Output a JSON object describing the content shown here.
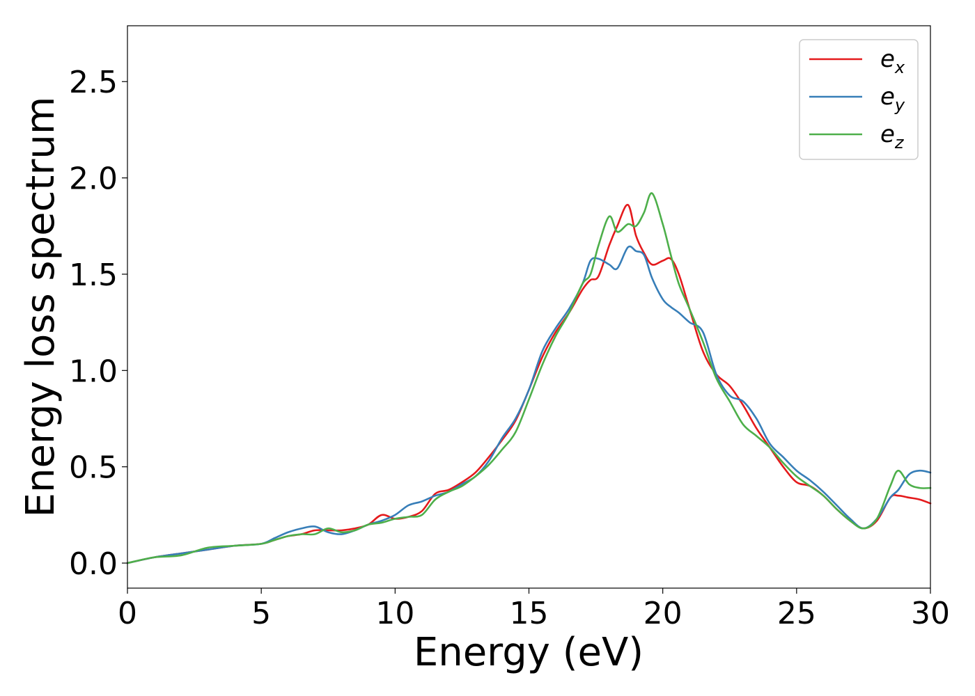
{
  "chart_data": {
    "type": "line",
    "title": "",
    "xlabel": "Energy (eV)",
    "ylabel": "Energy loss spectrum",
    "xlim": [
      0,
      30
    ],
    "ylim": [
      -0.13,
      2.79
    ],
    "xticks": [
      0,
      5,
      10,
      15,
      20,
      25,
      30
    ],
    "yticks": [
      0.0,
      0.5,
      1.0,
      1.5,
      2.0,
      2.5
    ],
    "xtick_labels": [
      "0",
      "5",
      "10",
      "15",
      "20",
      "25",
      "30"
    ],
    "ytick_labels": [
      "0.0",
      "0.5",
      "1.0",
      "1.5",
      "2.0",
      "2.5"
    ],
    "grid": false,
    "legend_position": "top-right",
    "series": [
      {
        "name": "e_x",
        "label_base": "e",
        "label_sub": "x",
        "color": "#e41a1c",
        "x": [
          0,
          1,
          2,
          3,
          4,
          5,
          5.5,
          6,
          6.5,
          7,
          7.5,
          8,
          8.5,
          9,
          9.5,
          10,
          10.5,
          11,
          11.5,
          12,
          12.5,
          13,
          13.5,
          14,
          14.5,
          15,
          15.5,
          16,
          16.5,
          17,
          17.3,
          17.6,
          18,
          18.3,
          18.7,
          19,
          19.3,
          19.6,
          20,
          20.3,
          20.6,
          21,
          21.5,
          22,
          22.5,
          23,
          23.5,
          24,
          24.5,
          25,
          25.5,
          26,
          26.5,
          27,
          27.5,
          28,
          28.5,
          28.8,
          29.2,
          29.6,
          30
        ],
        "y": [
          0.0,
          0.03,
          0.05,
          0.07,
          0.09,
          0.1,
          0.12,
          0.14,
          0.15,
          0.17,
          0.17,
          0.17,
          0.18,
          0.2,
          0.25,
          0.23,
          0.24,
          0.27,
          0.36,
          0.38,
          0.42,
          0.47,
          0.55,
          0.64,
          0.74,
          0.9,
          1.07,
          1.2,
          1.3,
          1.42,
          1.47,
          1.49,
          1.65,
          1.75,
          1.86,
          1.7,
          1.61,
          1.55,
          1.57,
          1.58,
          1.5,
          1.32,
          1.1,
          0.98,
          0.92,
          0.82,
          0.7,
          0.6,
          0.5,
          0.42,
          0.4,
          0.35,
          0.28,
          0.22,
          0.18,
          0.22,
          0.34,
          0.35,
          0.34,
          0.33,
          0.31
        ]
      },
      {
        "name": "e_y",
        "label_base": "e",
        "label_sub": "y",
        "color": "#377eb8",
        "x": [
          0,
          1,
          2,
          3,
          4,
          5,
          5.5,
          6,
          6.5,
          7,
          7.5,
          8,
          8.5,
          9,
          9.5,
          10,
          10.5,
          11,
          11.5,
          12,
          12.5,
          13,
          13.5,
          14,
          14.5,
          15,
          15.5,
          16,
          16.5,
          17,
          17.3,
          17.6,
          18,
          18.3,
          18.7,
          19,
          19.3,
          19.6,
          20,
          20.3,
          20.6,
          21,
          21.5,
          22,
          22.5,
          23,
          23.5,
          24,
          24.5,
          25,
          25.5,
          26,
          26.5,
          27,
          27.5,
          28,
          28.5,
          28.8,
          29.2,
          29.6,
          30
        ],
        "y": [
          0.0,
          0.03,
          0.05,
          0.07,
          0.09,
          0.1,
          0.13,
          0.16,
          0.18,
          0.19,
          0.16,
          0.15,
          0.17,
          0.2,
          0.22,
          0.25,
          0.3,
          0.32,
          0.35,
          0.37,
          0.41,
          0.45,
          0.53,
          0.65,
          0.75,
          0.9,
          1.1,
          1.22,
          1.32,
          1.45,
          1.57,
          1.58,
          1.55,
          1.53,
          1.64,
          1.62,
          1.6,
          1.48,
          1.37,
          1.33,
          1.3,
          1.25,
          1.2,
          0.98,
          0.87,
          0.84,
          0.75,
          0.62,
          0.55,
          0.48,
          0.43,
          0.37,
          0.3,
          0.23,
          0.18,
          0.23,
          0.34,
          0.38,
          0.46,
          0.48,
          0.47
        ]
      },
      {
        "name": "e_z",
        "label_base": "e",
        "label_sub": "z",
        "color": "#4daf4a",
        "x": [
          0,
          1,
          2,
          3,
          4,
          5,
          5.5,
          6,
          6.5,
          7,
          7.5,
          8,
          8.5,
          9,
          9.5,
          10,
          10.5,
          11,
          11.5,
          12,
          12.5,
          13,
          13.5,
          14,
          14.5,
          15,
          15.5,
          16,
          16.5,
          17,
          17.3,
          17.6,
          18,
          18.3,
          18.7,
          19,
          19.3,
          19.6,
          20,
          20.3,
          20.6,
          21,
          21.5,
          22,
          22.5,
          23,
          23.5,
          24,
          24.5,
          25,
          25.5,
          26,
          26.5,
          27,
          27.5,
          28,
          28.5,
          28.8,
          29.2,
          29.6,
          30
        ],
        "y": [
          0.0,
          0.03,
          0.04,
          0.08,
          0.09,
          0.1,
          0.12,
          0.14,
          0.15,
          0.15,
          0.18,
          0.16,
          0.17,
          0.2,
          0.21,
          0.23,
          0.24,
          0.25,
          0.33,
          0.37,
          0.4,
          0.45,
          0.51,
          0.59,
          0.68,
          0.85,
          1.03,
          1.18,
          1.3,
          1.45,
          1.5,
          1.65,
          1.8,
          1.72,
          1.76,
          1.75,
          1.82,
          1.92,
          1.76,
          1.6,
          1.45,
          1.32,
          1.15,
          0.96,
          0.84,
          0.72,
          0.66,
          0.6,
          0.52,
          0.45,
          0.4,
          0.35,
          0.28,
          0.22,
          0.18,
          0.23,
          0.4,
          0.48,
          0.41,
          0.39,
          0.39
        ]
      }
    ]
  }
}
